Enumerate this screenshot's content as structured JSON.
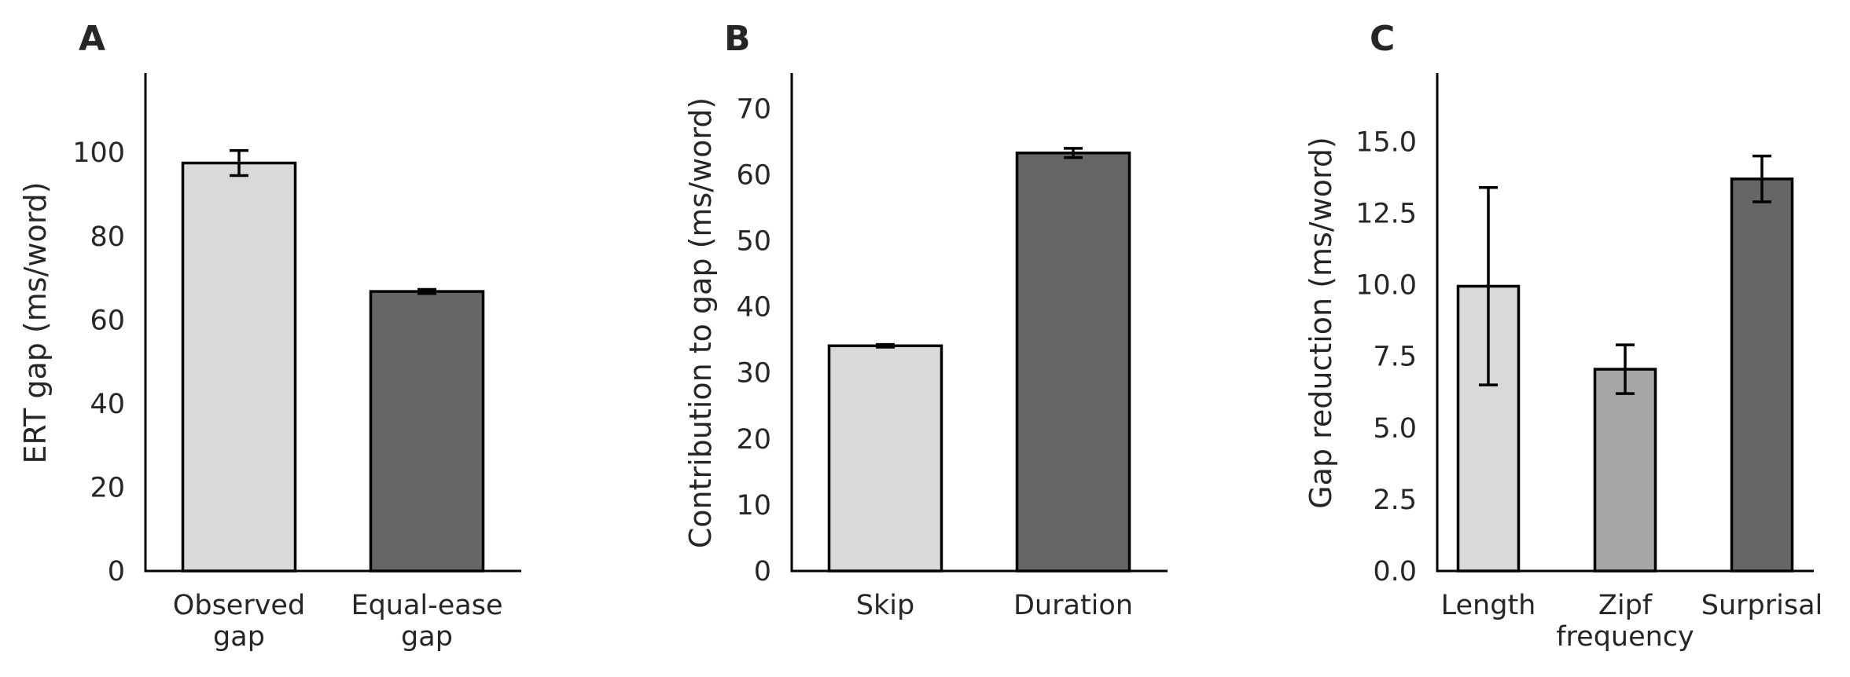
{
  "chart_data": [
    {
      "type": "bar",
      "panel_label": "A",
      "categories": [
        "Observed\ngap",
        "Equal-ease\ngap"
      ],
      "values": [
        97.5,
        66.8
      ],
      "errors": [
        [
          94.5,
          100.5
        ],
        [
          66.3,
          67.3
        ]
      ],
      "colors": [
        "#d9d9d9",
        "#666666"
      ],
      "ylabel": "ERT gap (ms/word)",
      "ylim": [
        0,
        119
      ],
      "yticks": [
        0,
        20,
        40,
        60,
        80,
        100
      ],
      "ytick_labels": [
        "0",
        "20",
        "40",
        "60",
        "80",
        "100"
      ]
    },
    {
      "type": "bar",
      "panel_label": "B",
      "categories": [
        "Skip",
        "Duration"
      ],
      "values": [
        34.1,
        63.3
      ],
      "errors": [
        [
          33.9,
          34.3
        ],
        [
          62.6,
          64.0
        ]
      ],
      "colors": [
        "#d9d9d9",
        "#666666"
      ],
      "ylabel": "Contribution to gap (ms/word)",
      "ylim": [
        0,
        75.4
      ],
      "yticks": [
        0,
        10,
        20,
        30,
        40,
        50,
        60,
        70
      ],
      "ytick_labels": [
        "0",
        "10",
        "20",
        "30",
        "40",
        "50",
        "60",
        "70"
      ]
    },
    {
      "type": "bar",
      "panel_label": "C",
      "categories": [
        "Length",
        "Zipf\nfrequency",
        "Surprisal"
      ],
      "values": [
        9.95,
        7.05,
        13.7
      ],
      "errors": [
        [
          6.5,
          13.4
        ],
        [
          6.2,
          7.9
        ],
        [
          12.9,
          14.5
        ]
      ],
      "colors": [
        "#d9d9d9",
        "#a6a6a6",
        "#666666"
      ],
      "ylabel": "Gap reduction (ms/word)",
      "ylim": [
        0,
        17.4
      ],
      "yticks": [
        0,
        2.5,
        5,
        7.5,
        10,
        12.5,
        15
      ],
      "ytick_labels": [
        "0.0",
        "2.5",
        "5.0",
        "7.5",
        "10.0",
        "12.5",
        "15.0"
      ]
    }
  ]
}
